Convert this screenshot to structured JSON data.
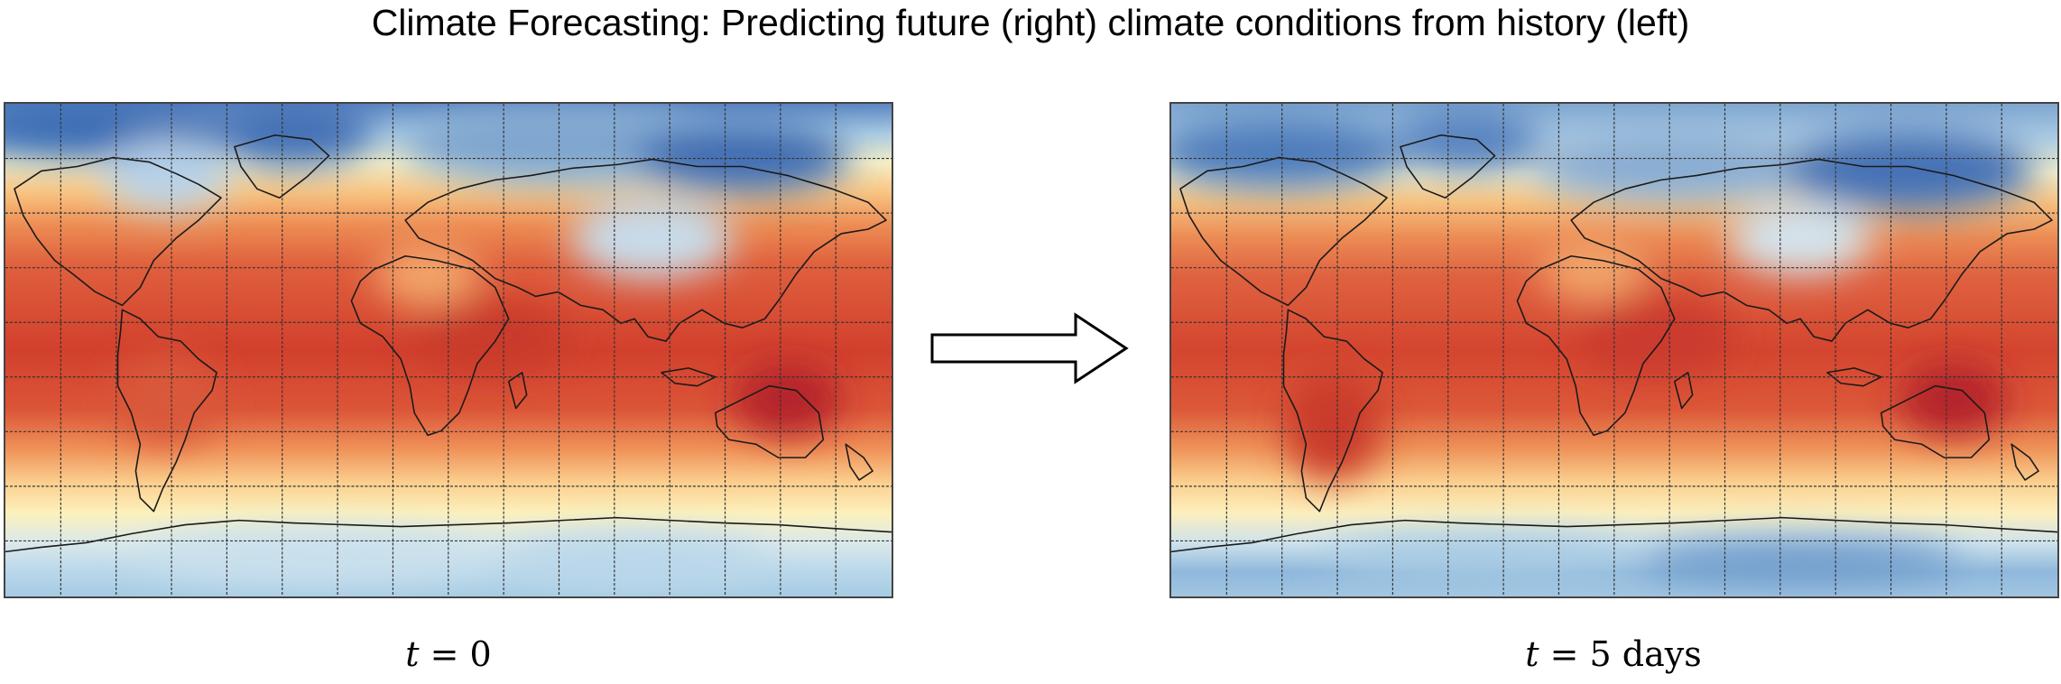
{
  "title": "Climate Forecasting: Predicting future (right) climate conditions from history (left)",
  "maps": {
    "left": {
      "caption_var": "t",
      "caption_eq": "= 0"
    },
    "right": {
      "caption_var": "t",
      "caption_eq": "= 5 days"
    }
  },
  "colors": {
    "cold": "#2f62ad",
    "cool": "#b8d8ea",
    "mild": "#fdf0b4",
    "warm": "#f4a05c",
    "hot": "#d6472f",
    "hottest": "#b8262a",
    "coastline": "#1a1a1a",
    "grid": "#333333"
  }
}
